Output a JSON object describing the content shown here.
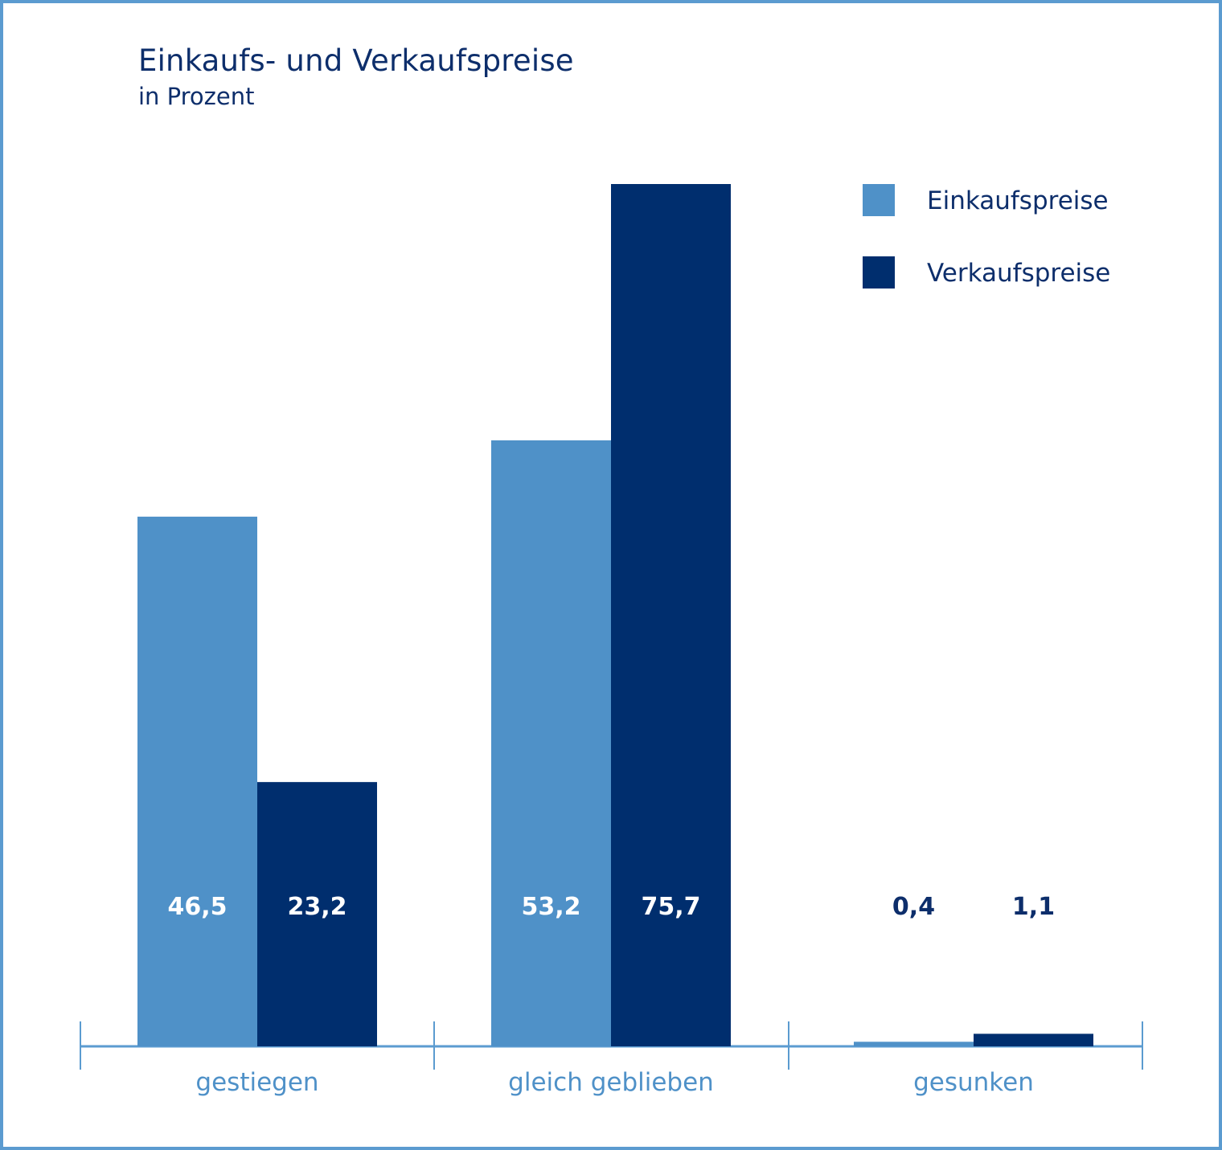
{
  "title": "Einkaufs- und Verkaufspreise",
  "subtitle": "in Prozent",
  "colors": {
    "einkauf": "#4f91c8",
    "verkauf": "#002e6e",
    "axis": "#5b9bd0",
    "text_dark": "#0d2e6b",
    "category_text": "#4f91c8"
  },
  "chart_data": {
    "type": "bar",
    "title": "Einkaufs- und Verkaufspreise",
    "subtitle": "in Prozent",
    "categories": [
      "gestiegen",
      "gleich geblieben",
      "gesunken"
    ],
    "series": [
      {
        "name": "Einkaufspreise",
        "values": [
          46.5,
          53.2,
          0.4
        ],
        "labels": [
          "46,5",
          "53,2",
          "0,4"
        ]
      },
      {
        "name": "Verkaufspreise",
        "values": [
          23.2,
          75.7,
          1.1
        ],
        "labels": [
          "23,2",
          "75,7",
          "1,1"
        ]
      }
    ],
    "ylim": [
      0,
      75.7
    ],
    "grid": false,
    "legend_position": "top-right"
  }
}
